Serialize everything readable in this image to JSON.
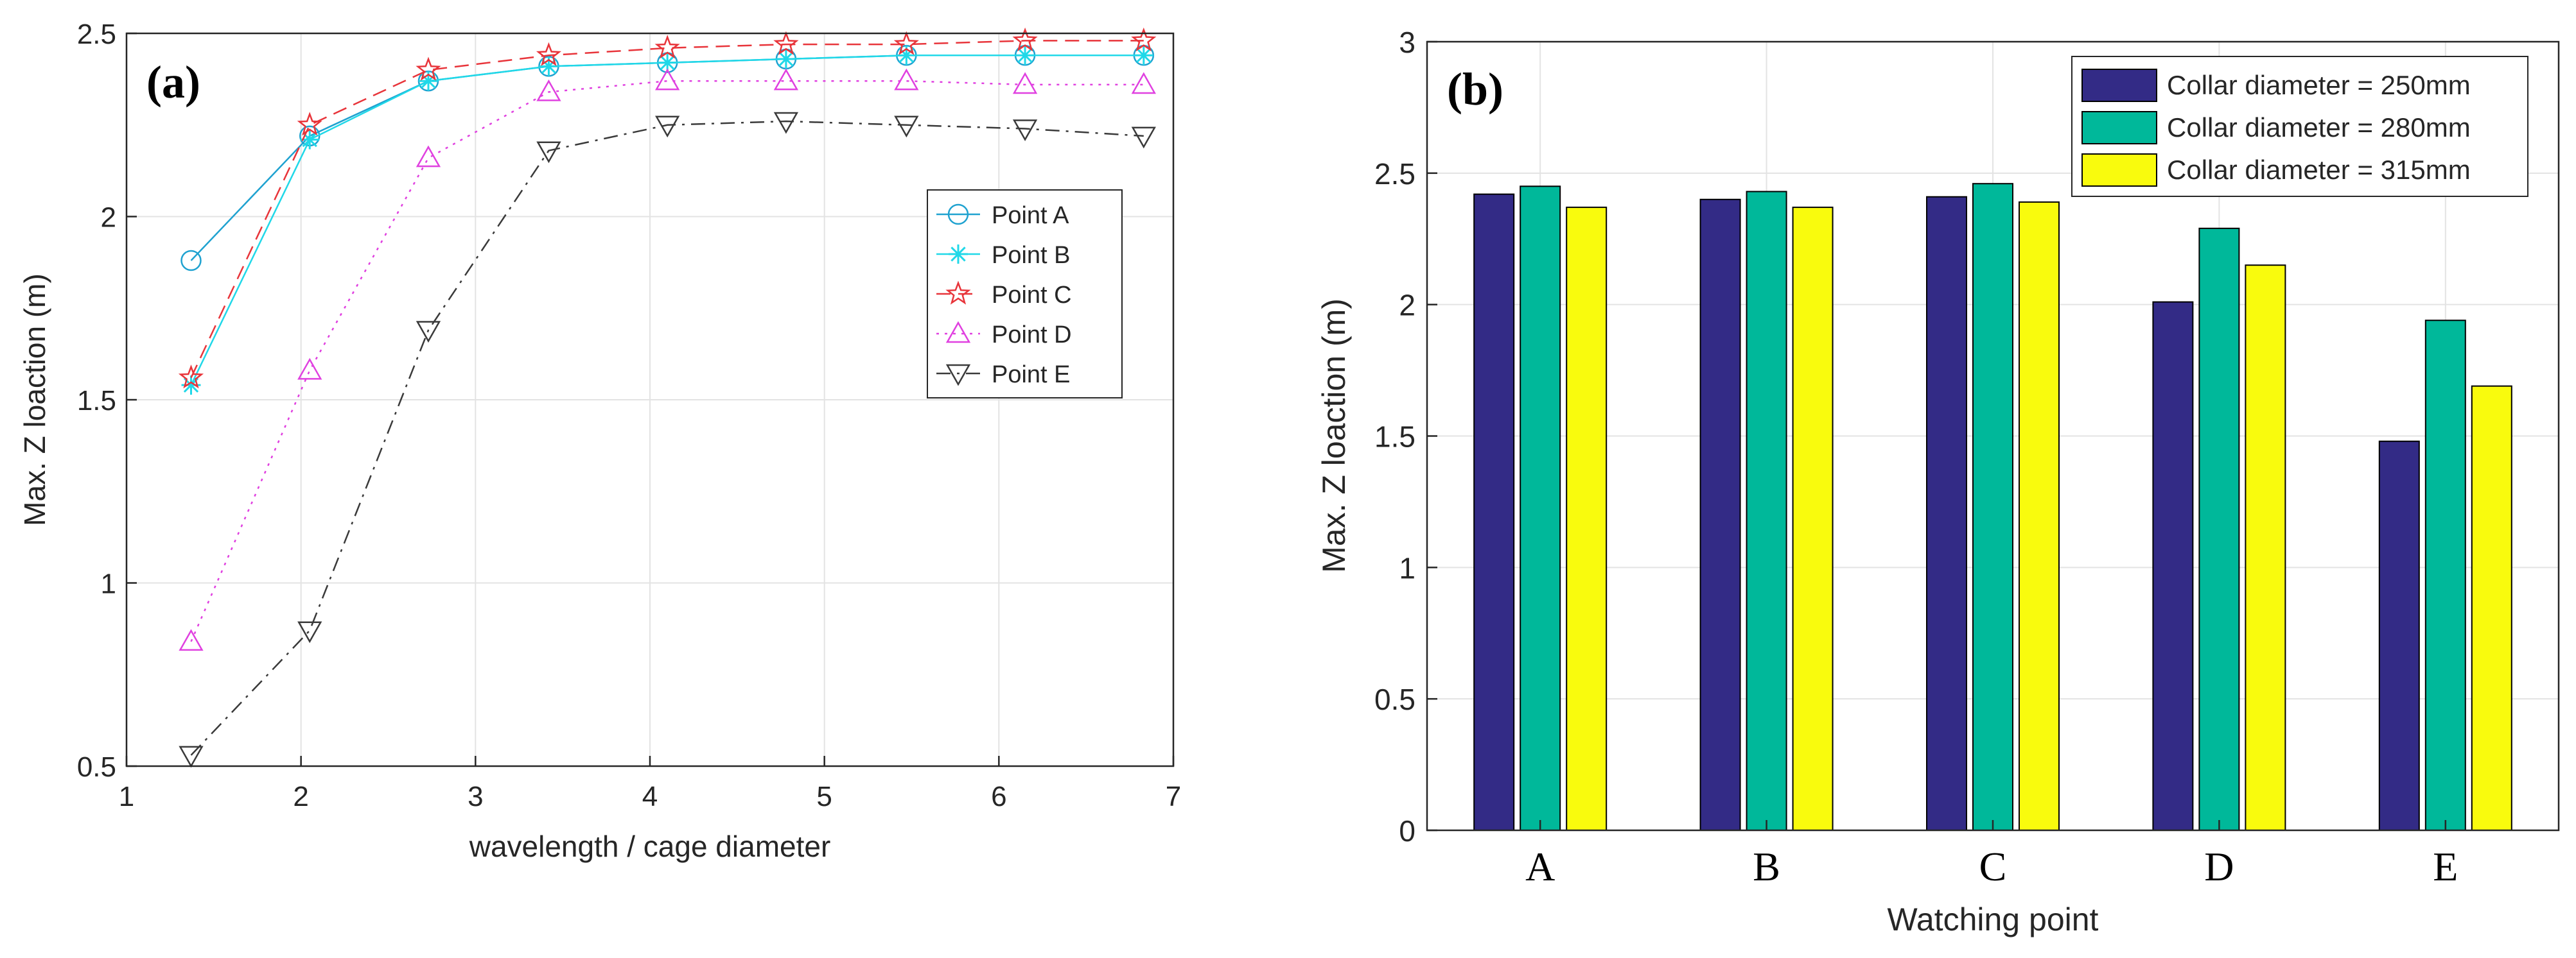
{
  "chart_data": [
    {
      "panel_label": "(a)",
      "type": "line",
      "xlabel": "wavelength / cage diameter",
      "ylabel": "Max. Z loaction (m)",
      "xlim": [
        1,
        7
      ],
      "ylim": [
        0.5,
        2.5
      ],
      "xticks": [
        1,
        2,
        3,
        4,
        5,
        6,
        7
      ],
      "xtick_labels": [
        "1",
        "2",
        "3",
        "4",
        "5",
        "6",
        "7"
      ],
      "yticks": [
        0.5,
        1,
        1.5,
        2,
        2.5
      ],
      "ytick_labels": [
        "0.5",
        "1",
        "1.5",
        "2",
        "2.5"
      ],
      "grid": true,
      "legend_position": "center-right",
      "x": [
        1.37,
        2.05,
        2.73,
        3.42,
        4.1,
        4.78,
        5.47,
        6.15,
        6.83
      ],
      "series": [
        {
          "name": "Point A",
          "color": "#1fa2d0",
          "marker": "circle",
          "dash": "solid",
          "values": [
            1.88,
            2.22,
            2.37,
            2.41,
            2.42,
            2.43,
            2.44,
            2.44,
            2.44
          ]
        },
        {
          "name": "Point B",
          "color": "#20d8e8",
          "marker": "star",
          "dash": "solid",
          "values": [
            1.54,
            2.21,
            2.37,
            2.41,
            2.42,
            2.43,
            2.44,
            2.44,
            2.44
          ]
        },
        {
          "name": "Point C",
          "color": "#e8343a",
          "marker": "pentagram",
          "dash": "dashed",
          "values": [
            1.56,
            2.25,
            2.4,
            2.44,
            2.46,
            2.47,
            2.47,
            2.48,
            2.48
          ]
        },
        {
          "name": "Point D",
          "color": "#e040e0",
          "marker": "triangle-up",
          "dash": "dotted",
          "values": [
            0.84,
            1.58,
            2.16,
            2.34,
            2.37,
            2.37,
            2.37,
            2.36,
            2.36
          ]
        },
        {
          "name": "Point E",
          "color": "#3a3a3a",
          "marker": "triangle-down",
          "dash": "dashdot",
          "values": [
            0.53,
            0.87,
            1.69,
            2.18,
            2.25,
            2.26,
            2.25,
            2.24,
            2.22
          ]
        }
      ]
    },
    {
      "panel_label": "(b)",
      "type": "bar",
      "xlabel": "Watching point",
      "ylabel": "Max. Z loaction (m)",
      "ylim": [
        0,
        3
      ],
      "yticks": [
        0,
        0.5,
        1,
        1.5,
        2,
        2.5,
        3
      ],
      "ytick_labels": [
        "0",
        "0.5",
        "1",
        "1.5",
        "2",
        "2.5",
        "3"
      ],
      "grid": true,
      "legend_position": "top-right",
      "categories": [
        "A",
        "B",
        "C",
        "D",
        "E"
      ],
      "series": [
        {
          "name": "Collar diameter = 250mm",
          "color": "#332b86",
          "values": [
            2.42,
            2.4,
            2.41,
            2.01,
            1.48
          ]
        },
        {
          "name": "Collar diameter = 280mm",
          "color": "#00b89a",
          "values": [
            2.45,
            2.43,
            2.46,
            2.29,
            1.94
          ]
        },
        {
          "name": "Collar diameter = 315mm",
          "color": "#f9fb0d",
          "values": [
            2.37,
            2.37,
            2.39,
            2.15,
            1.69
          ]
        }
      ]
    }
  ]
}
